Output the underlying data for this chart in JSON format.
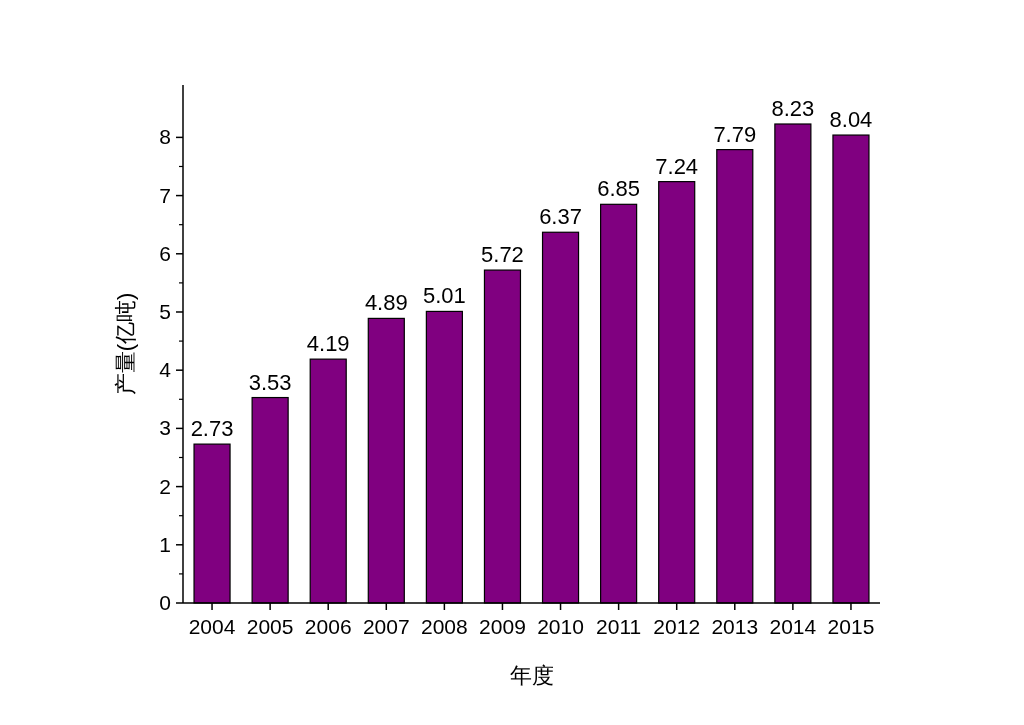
{
  "chart_data": {
    "type": "bar",
    "xlabel": "年度",
    "ylabel": "产量(亿吨)",
    "categories": [
      "2004",
      "2005",
      "2006",
      "2007",
      "2008",
      "2009",
      "2010",
      "2011",
      "2012",
      "2013",
      "2014",
      "2015"
    ],
    "values": [
      2.73,
      3.53,
      4.19,
      4.89,
      5.01,
      5.72,
      6.37,
      6.85,
      7.24,
      7.79,
      8.23,
      8.04
    ],
    "color": "#800080",
    "ylim": [
      0,
      8.9
    ],
    "yticks": [
      0,
      1,
      2,
      3,
      4,
      5,
      6,
      7,
      8
    ],
    "data_labels": true
  }
}
